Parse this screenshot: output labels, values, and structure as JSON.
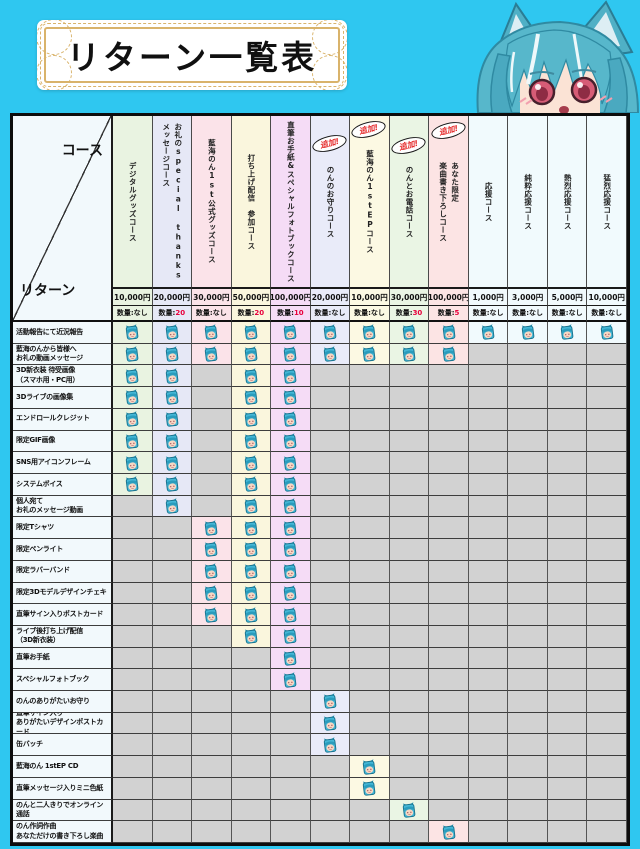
{
  "banner": {
    "title": "リターン一覧表"
  },
  "corner": {
    "top_right": "コース",
    "bottom_left": "リターン"
  },
  "labels": {
    "quantity_prefix": "数量:",
    "added_badge": "追加!"
  },
  "colors": {
    "page_bg": "#2fc7f0",
    "table_border": "#0d0d0d",
    "empty_cell": "#d2d2d2",
    "label_column_bg": "#f2f9fc",
    "limited_quantity_red": "#e8003c",
    "badge_red": "#e52b2b",
    "gold_frame": "#d9b36b",
    "character_hair_teal": "#57b7cb"
  },
  "chart_data": {
    "type": "table",
    "title": "リターン一覧表",
    "check_icon": "character-face-icon",
    "columns": [
      {
        "name": "デジタルグッズコース",
        "lines": [
          "デジタルグッズコース"
        ],
        "price": "10,000円",
        "quantity": "なし",
        "limited": false,
        "added": false,
        "tint": "#e9f3e1"
      },
      {
        "name": "お礼のspecial thanksメッセージコース",
        "lines": [
          "お礼のspecial thanks",
          "メッセージコース"
        ],
        "price": "20,000円",
        "quantity": "20",
        "limited": true,
        "added": false,
        "tint": "#e6e8f6"
      },
      {
        "name": "藍海のん1st公式グッズコース",
        "lines": [
          "藍海のん1st公式グッズコース"
        ],
        "price": "30,000円",
        "quantity": "なし",
        "limited": false,
        "added": false,
        "tint": "#fbe3e9"
      },
      {
        "name": "打ち上げ配信 参加コース",
        "lines": [
          "打ち上げ配信　参加コース"
        ],
        "price": "50,000円",
        "quantity": "20",
        "limited": true,
        "added": false,
        "tint": "#faf6dd"
      },
      {
        "name": "直筆お手紙&スペシャルフォトブックコース",
        "lines": [
          "直筆お手紙&スペシャルフォトブックコース"
        ],
        "price": "100,000円",
        "quantity": "10",
        "limited": true,
        "added": false,
        "tint": "#f5dcf6"
      },
      {
        "name": "のんのお守りコース",
        "lines": [
          "のんのお守りコース"
        ],
        "price": "20,000円",
        "quantity": "なし",
        "limited": false,
        "added": true,
        "tint": "#e9ebf9"
      },
      {
        "name": "藍海のん1stEPコース",
        "lines": [
          "藍海のん1stEPコース"
        ],
        "price": "10,000円",
        "quantity": "なし",
        "limited": false,
        "added": true,
        "tint": "#fcf9e3"
      },
      {
        "name": "のんとお電話コース",
        "lines": [
          "のんとお電話コース"
        ],
        "price": "30,000円",
        "quantity": "30",
        "limited": true,
        "added": true,
        "tint": "#eaf5e4"
      },
      {
        "name": "あなた限定楽曲書き下ろしコース",
        "lines": [
          "あなた限定",
          "楽曲書き下ろしコース"
        ],
        "price": "100,000円",
        "quantity": "5",
        "limited": true,
        "added": true,
        "tint": "#fce4e4"
      },
      {
        "name": "応援コース",
        "lines": [
          "応援コース"
        ],
        "price": "1,000円",
        "quantity": "なし",
        "limited": false,
        "added": false,
        "tint": "#f1fafd"
      },
      {
        "name": "純粋応援コース",
        "lines": [
          "純粋応援コース"
        ],
        "price": "3,000円",
        "quantity": "なし",
        "limited": false,
        "added": false,
        "tint": "#f1fafd"
      },
      {
        "name": "熱烈応援コース",
        "lines": [
          "熱烈応援コース"
        ],
        "price": "5,000円",
        "quantity": "なし",
        "limited": false,
        "added": false,
        "tint": "#f1fafd"
      },
      {
        "name": "猛烈応援コース",
        "lines": [
          "猛烈応援コース"
        ],
        "price": "10,000円",
        "quantity": "なし",
        "limited": false,
        "added": false,
        "tint": "#f1fafd"
      }
    ],
    "rows": [
      {
        "label": "活動報告にて近況報告",
        "lines": [
          "活動報告にて近況報告"
        ],
        "checks": [
          1,
          2,
          3,
          4,
          5,
          6,
          7,
          8,
          9,
          10,
          11,
          12,
          13
        ]
      },
      {
        "label": "藍海のんから皆様へ お礼の動画メッセージ",
        "lines": [
          "藍海のんから皆様へ",
          "お礼の動画メッセージ"
        ],
        "checks": [
          1,
          2,
          3,
          4,
          5,
          6,
          7,
          8,
          9
        ]
      },
      {
        "label": "3D新衣装 待受画像（スマホ用・PC用）",
        "lines": [
          "3D新衣装 待受画像",
          "（スマホ用・PC用）"
        ],
        "checks": [
          1,
          2,
          4,
          5
        ]
      },
      {
        "label": "3Dライブの画像集",
        "lines": [
          "3Dライブの画像集"
        ],
        "checks": [
          1,
          2,
          4,
          5
        ]
      },
      {
        "label": "エンドロールクレジット",
        "lines": [
          "エンドロールクレジット"
        ],
        "checks": [
          1,
          2,
          4,
          5
        ]
      },
      {
        "label": "限定GIF画像",
        "lines": [
          "限定GIF画像"
        ],
        "checks": [
          1,
          2,
          4,
          5
        ]
      },
      {
        "label": "SNS用アイコンフレーム",
        "lines": [
          "SNS用アイコンフレーム"
        ],
        "checks": [
          1,
          2,
          4,
          5
        ]
      },
      {
        "label": "システムボイス",
        "lines": [
          "システムボイス"
        ],
        "checks": [
          1,
          2,
          4,
          5
        ]
      },
      {
        "label": "個人宛て お礼のメッセージ動画",
        "lines": [
          "個人宛て",
          "お礼のメッセージ動画"
        ],
        "checks": [
          2,
          4,
          5
        ]
      },
      {
        "label": "限定Tシャツ",
        "lines": [
          "限定Tシャツ"
        ],
        "checks": [
          3,
          4,
          5
        ]
      },
      {
        "label": "限定ペンライト",
        "lines": [
          "限定ペンライト"
        ],
        "checks": [
          3,
          4,
          5
        ]
      },
      {
        "label": "限定ラバーバンド",
        "lines": [
          "限定ラバーバンド"
        ],
        "checks": [
          3,
          4,
          5
        ]
      },
      {
        "label": "限定3Dモデルデザインチェキ",
        "lines": [
          "限定3Dモデルデザインチェキ"
        ],
        "checks": [
          3,
          4,
          5
        ]
      },
      {
        "label": "直筆サイン入りポストカード",
        "lines": [
          "直筆サイン入りポストカード"
        ],
        "checks": [
          3,
          4,
          5
        ]
      },
      {
        "label": "ライブ後打ち上げ配信（3D新衣装）",
        "lines": [
          "ライブ後打ち上げ配信",
          "（3D新衣装）"
        ],
        "checks": [
          4,
          5
        ]
      },
      {
        "label": "直筆お手紙",
        "lines": [
          "直筆お手紙"
        ],
        "checks": [
          5
        ]
      },
      {
        "label": "スペシャルフォトブック",
        "lines": [
          "スペシャルフォトブック"
        ],
        "checks": [
          5
        ]
      },
      {
        "label": "のんのありがたいお守り",
        "lines": [
          "のんのありがたいお守り"
        ],
        "checks": [
          6
        ]
      },
      {
        "label": "直筆サイン入り ありがたいデザインポストカード",
        "lines": [
          "直筆サイン入り",
          "ありがたいデザインポストカード"
        ],
        "checks": [
          6
        ]
      },
      {
        "label": "缶バッチ",
        "lines": [
          "缶バッチ"
        ],
        "checks": [
          6
        ]
      },
      {
        "label": "藍海のん 1stEP CD",
        "lines": [
          "藍海のん 1stEP CD"
        ],
        "checks": [
          7
        ]
      },
      {
        "label": "直筆メッセージ入りミニ色紙",
        "lines": [
          "直筆メッセージ入りミニ色紙"
        ],
        "checks": [
          7
        ]
      },
      {
        "label": "のんと二人きりでオンライン通話",
        "lines": [
          "のんと二人きりでオンライン通話"
        ],
        "checks": [
          8
        ]
      },
      {
        "label": "のん作詞作曲 あなただけの書き下ろし楽曲",
        "lines": [
          "のん作詞作曲",
          "あなただけの書き下ろし楽曲"
        ],
        "checks": [
          9
        ]
      }
    ]
  }
}
